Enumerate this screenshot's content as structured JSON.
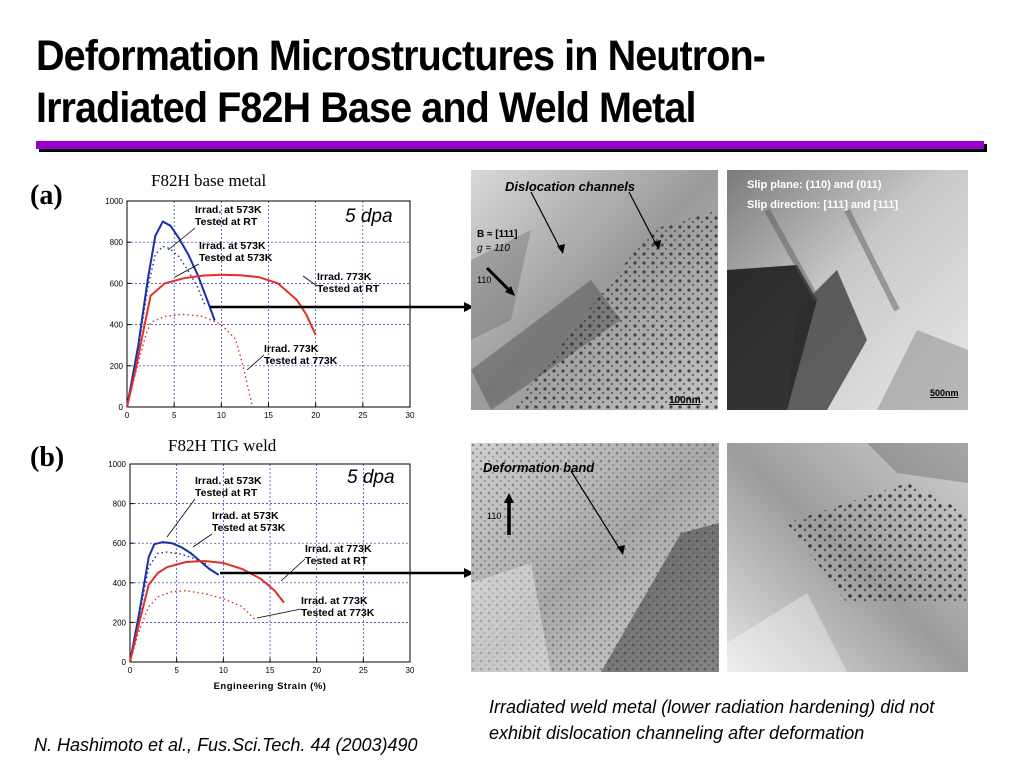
{
  "title": "Deformation Microstructures in Neutron-Irradiated F82H Base and Weld Metal",
  "colors": {
    "accent_rule": "#9900cc",
    "curve_573": "#1a2fa8",
    "curve_773": "#e0302a",
    "grid": "#2a2aa0"
  },
  "panel_a": {
    "label": "(a)",
    "chart_title": "F82H base metal",
    "dpa": "5 dpa",
    "annotations": [
      "Irrad. at 573K",
      "Tested at RT",
      "Irrad. at 573K",
      "Tested at 573K",
      "Irrad. 773K",
      "Tested at RT",
      "Irrad. 773K",
      "Tested at 773K"
    ],
    "micro_left": {
      "label": "Dislocation channels",
      "beam": "B ≈ [111]",
      "g": "g = 110",
      "g_label": "110",
      "scale": "100nm"
    },
    "micro_right": {
      "line1": "Slip plane: (110) and (011)",
      "line2": "Slip direction: [111] and [111]",
      "scale": "500nm"
    }
  },
  "panel_b": {
    "label": "(b)",
    "chart_title": "F82H TIG weld",
    "dpa": "5 dpa",
    "annotations": [
      "Irrad. at 573K",
      "Tested at RT",
      "Irrad. at 573K",
      "Tested at 573K",
      "Irrad. at 773K",
      "Tested at RT",
      "Irrad. at 773K",
      "Tested at 773K"
    ],
    "micro_left": {
      "label": "Deformation band",
      "g_label": "110"
    }
  },
  "caption": "Irradiated weld metal (lower radiation hardening) did not exhibit dislocation channeling after deformation",
  "reference": "N. Hashimoto et al., Fus.Sci.Tech. 44 (2003)490",
  "chart_data": [
    {
      "type": "line",
      "title": "F82H base metal",
      "xlabel": "",
      "ylabel": "",
      "xlim": [
        0,
        30
      ],
      "ylim": [
        0,
        1000
      ],
      "xticks": [
        0,
        5,
        10,
        15,
        20,
        25,
        30
      ],
      "yticks": [
        0,
        200,
        400,
        600,
        800,
        1000
      ],
      "series": [
        {
          "name": "Irrad. at 573K Tested at RT",
          "color": "#1a2fa8",
          "dash": false,
          "x": [
            0,
            1.2,
            2.2,
            3.0,
            3.8,
            4.6,
            5.5,
            6.5,
            7.5,
            8.5,
            9.3
          ],
          "y": [
            0,
            300,
            620,
            830,
            900,
            880,
            820,
            740,
            640,
            520,
            420
          ]
        },
        {
          "name": "Irrad. at 573K Tested at 573K",
          "color": "#1a2fa8",
          "dash": true,
          "x": [
            0,
            1.2,
            2.2,
            3.0,
            3.8,
            4.5,
            5.5,
            6.5,
            7.5,
            8.3
          ],
          "y": [
            0,
            280,
            580,
            740,
            780,
            770,
            730,
            660,
            580,
            490
          ]
        },
        {
          "name": "Irrad. 773K Tested at RT",
          "color": "#e0302a",
          "dash": false,
          "x": [
            0,
            1.0,
            2.0,
            2.5,
            4.0,
            6.0,
            8.0,
            10.0,
            12.0,
            14.0,
            16.0,
            18.0,
            19.0,
            20.0
          ],
          "y": [
            0,
            200,
            430,
            540,
            600,
            625,
            638,
            642,
            640,
            630,
            600,
            520,
            450,
            350
          ]
        },
        {
          "name": "Irrad. 773K Tested at 773K",
          "color": "#e0302a",
          "dash": true,
          "x": [
            0,
            1.0,
            2.0,
            2.5,
            4.0,
            6.0,
            8.0,
            10.0,
            11.5,
            12.3,
            13.0,
            13.3
          ],
          "y": [
            0,
            180,
            350,
            410,
            440,
            450,
            440,
            400,
            330,
            200,
            60,
            0
          ]
        }
      ]
    },
    {
      "type": "line",
      "title": "F82H TIG weld",
      "xlabel": "Engineering Strain (%)",
      "ylabel": "",
      "xlim": [
        0,
        30
      ],
      "ylim": [
        0,
        1000
      ],
      "xticks": [
        0,
        5,
        10,
        15,
        20,
        25,
        30
      ],
      "yticks": [
        0,
        200,
        400,
        600,
        800,
        1000
      ],
      "series": [
        {
          "name": "Irrad. at 573K Tested at RT",
          "color": "#1a2fa8",
          "dash": false,
          "x": [
            0,
            1.0,
            2.0,
            2.6,
            3.5,
            4.5,
            5.5,
            6.5,
            7.5,
            8.5,
            9.5
          ],
          "y": [
            0,
            250,
            530,
            595,
            605,
            600,
            580,
            550,
            510,
            470,
            440
          ]
        },
        {
          "name": "Irrad. at 573K Tested at 573K",
          "color": "#1a2fa8",
          "dash": true,
          "x": [
            0,
            1.0,
            2.0,
            3.0,
            4.0,
            5.5,
            7.0,
            8.5
          ],
          "y": [
            0,
            230,
            480,
            550,
            555,
            545,
            520,
            490
          ]
        },
        {
          "name": "Irrad. at 773K Tested at RT",
          "color": "#e0302a",
          "dash": false,
          "x": [
            0,
            1.0,
            2.0,
            3.0,
            4.0,
            6.0,
            8.0,
            10.0,
            12.0,
            14.0,
            15.5,
            16.5
          ],
          "y": [
            0,
            200,
            390,
            450,
            480,
            505,
            510,
            500,
            470,
            420,
            360,
            300
          ]
        },
        {
          "name": "Irrad. at 773K Tested at 773K",
          "color": "#e0302a",
          "dash": true,
          "x": [
            0,
            1.0,
            2.0,
            3.0,
            4.5,
            6.0,
            8.0,
            10.0,
            12.0,
            13.5
          ],
          "y": [
            0,
            160,
            280,
            330,
            355,
            360,
            345,
            320,
            280,
            210
          ]
        }
      ]
    }
  ]
}
